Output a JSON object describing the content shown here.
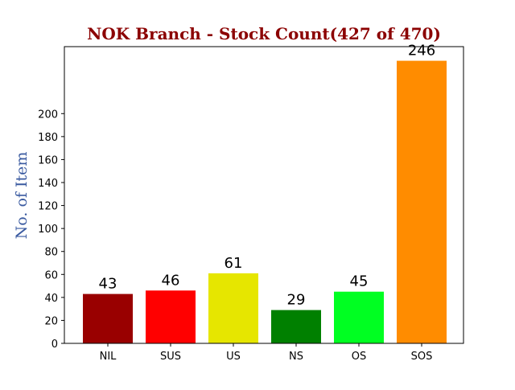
{
  "colors": {
    "title": "#8b0000",
    "ylabel": "#3a5aa0",
    "axis": "#000000",
    "background": "#ffffff"
  },
  "chart_data": {
    "type": "bar",
    "title": "NOK Branch - Stock Count(427 of 470)",
    "xlabel": "",
    "ylabel": "No. of Item",
    "categories": [
      "NIL",
      "SUS",
      "US",
      "NS",
      "OS",
      "SOS"
    ],
    "values": [
      43,
      46,
      61,
      29,
      45,
      246
    ],
    "data_labels": [
      "43",
      "46",
      "61",
      "29",
      "45",
      "246"
    ],
    "bar_colors": [
      "#990000",
      "#ff0000",
      "#e6e600",
      "#008000",
      "#00ff22",
      "#ff8c00"
    ],
    "yticks": [
      0,
      20,
      40,
      60,
      80,
      100,
      120,
      140,
      160,
      180,
      200
    ],
    "ylim": [
      0,
      258.3
    ],
    "grid": false,
    "legend": "none"
  }
}
